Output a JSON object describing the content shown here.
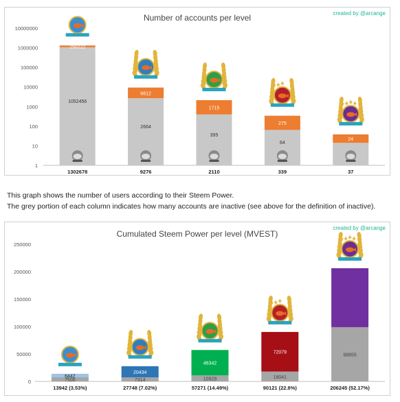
{
  "colors": {
    "grey": "#c8c8c8",
    "grey_dark": "#a6a6a6",
    "orange": "#ed7d31",
    "light_blue": "#9dc3e6",
    "blue": "#2e75b6",
    "green": "#00b050",
    "dark_red": "#a50f15",
    "purple": "#7030a0",
    "credit": "#1fb58f"
  },
  "icons": [
    "whale-in-bowl-icon",
    "fish-badge-icon",
    "fish-in-cup-icon",
    "dolphin-badge-icon",
    "whale-trophy-icon",
    "mascot-icon"
  ],
  "chart_data": [
    {
      "type": "bar",
      "title": "Number of accounts per level",
      "credit": "created by @arcange",
      "scale": "log",
      "ylim": [
        1,
        10000000
      ],
      "ytick_labels": [
        "1",
        "10",
        "100",
        "1000",
        "10000",
        "100000",
        "1000000",
        "10000000"
      ],
      "categories": [
        "1302678",
        "9276",
        "2110",
        "339",
        "37"
      ],
      "stacked": true,
      "series": [
        {
          "color": "#c8c8c8",
          "values": [
            1052456,
            2664,
            395,
            64,
            14
          ],
          "labels": [
            "1052456",
            "2664",
            "395",
            "64",
            ""
          ]
        },
        {
          "color": "#ed7d31",
          "values": [
            250222,
            6612,
            1715,
            275,
            24
          ],
          "labels": [
            "250222",
            "6612",
            "1715",
            "275",
            "24"
          ]
        }
      ],
      "totals": [
        1302678,
        9276,
        2110,
        339,
        37
      ],
      "grid": false
    },
    {
      "type": "bar",
      "title": "Cumulated Steem Power per level (MVEST)",
      "credit": "created by @arcange",
      "ylim": [
        0,
        250000
      ],
      "ytick_labels": [
        "0",
        "50000",
        "100000",
        "150000",
        "200000",
        "250000"
      ],
      "categories": [
        "13942 (3.53%)",
        "27748 (7.02%)",
        "57271 (14.49%)",
        "90121 (22.8%)",
        "206245 (52.17%)"
      ],
      "stacked": true,
      "series": [
        {
          "color": "#a6a6a6",
          "values": [
            7500,
            7314,
            10929,
            18041,
            98855
          ],
          "labels": [
            "7500",
            "7314",
            "10929",
            "18041",
            "98855"
          ]
        },
        {
          "colors": [
            "#9dc3e6",
            "#2e75b6",
            "#00b050",
            "#a50f15",
            "#7030a0"
          ],
          "values": [
            6442,
            20434,
            46342,
            72079,
            107390
          ],
          "labels": [
            "6442",
            "20434",
            "46342",
            "72079",
            ""
          ]
        }
      ],
      "grid": false
    }
  ],
  "description": [
    "This graph shows the number of users according to their Steem Power.",
    "The grey portion of each column indicates how many accounts are inactive (see above for the definition of inactive)."
  ]
}
